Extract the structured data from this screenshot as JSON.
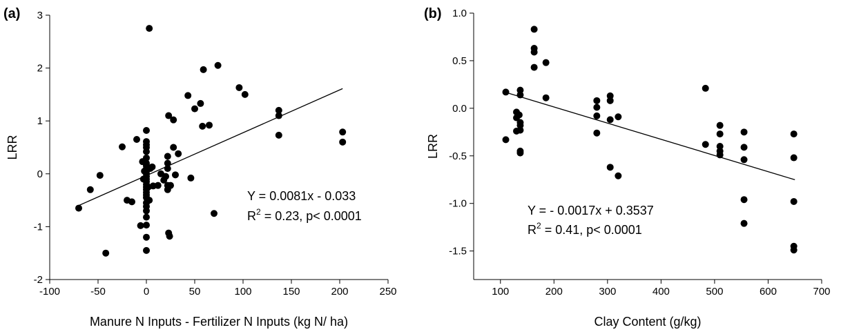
{
  "chart_data": [
    {
      "type": "scatter",
      "panel_label": "(a)",
      "xlabel": "Manure N Inputs - Fertilizer N Inputs (kg N/ ha)",
      "ylabel": "LRR",
      "xlim": [
        -100,
        250
      ],
      "ylim": [
        -2,
        3
      ],
      "xticks": [
        -100,
        -50,
        0,
        50,
        100,
        150,
        200,
        250
      ],
      "yticks": [
        -2,
        -1,
        0,
        1,
        2,
        3
      ],
      "x_tick_labels": [
        "-100",
        "-50",
        "0",
        "50",
        "100",
        "150",
        "200",
        "250"
      ],
      "y_tick_labels": [
        "-2",
        "-1",
        "0",
        "1",
        "2",
        "3"
      ],
      "fit": {
        "slope": 0.0081,
        "intercept": -0.033,
        "x_range": [
          -70,
          203
        ]
      },
      "annotation": {
        "line1": "Y = 0.0081x - 0.033",
        "line2_prefix": "R",
        "line2_sup": "2",
        "line2_suffix": " = 0.23, p< 0.0001"
      },
      "points": [
        [
          -70,
          -0.65
        ],
        [
          -58,
          -0.3
        ],
        [
          -48,
          -0.03
        ],
        [
          -42,
          -1.5
        ],
        [
          -25,
          0.51
        ],
        [
          -20,
          -0.5
        ],
        [
          -15,
          -0.53
        ],
        [
          -10,
          0.65
        ],
        [
          -6,
          -0.98
        ],
        [
          -4,
          0.23
        ],
        [
          -3,
          -0.1
        ],
        [
          -2,
          0.05
        ],
        [
          0,
          0.82
        ],
        [
          0,
          0.61
        ],
        [
          0,
          0.55
        ],
        [
          0,
          0.5
        ],
        [
          0,
          0.42
        ],
        [
          0,
          0.3
        ],
        [
          0,
          0.2
        ],
        [
          0,
          0.15
        ],
        [
          0,
          0.1
        ],
        [
          0,
          0.05
        ],
        [
          0,
          0.0
        ],
        [
          0,
          -0.05
        ],
        [
          0,
          -0.1
        ],
        [
          0,
          -0.15
        ],
        [
          0,
          -0.2
        ],
        [
          0,
          -0.25
        ],
        [
          0,
          -0.3
        ],
        [
          0,
          -0.35
        ],
        [
          0,
          -0.4
        ],
        [
          0,
          -0.45
        ],
        [
          0,
          -0.55
        ],
        [
          0,
          -0.62
        ],
        [
          0,
          -0.7
        ],
        [
          0,
          -0.82
        ],
        [
          0,
          -0.97
        ],
        [
          0,
          -1.2
        ],
        [
          0,
          -1.45
        ],
        [
          2,
          -0.25
        ],
        [
          3,
          2.75
        ],
        [
          3,
          -0.5
        ],
        [
          4,
          0.1
        ],
        [
          6,
          0.13
        ],
        [
          7,
          -0.23
        ],
        [
          12,
          -0.22
        ],
        [
          15,
          0.0
        ],
        [
          18,
          -0.12
        ],
        [
          20,
          -0.05
        ],
        [
          22,
          0.33
        ],
        [
          22,
          0.2
        ],
        [
          22,
          0.1
        ],
        [
          22,
          -0.22
        ],
        [
          22,
          -0.3
        ],
        [
          23,
          1.1
        ],
        [
          23,
          -1.12
        ],
        [
          24,
          -1.18
        ],
        [
          25,
          -0.22
        ],
        [
          28,
          1.02
        ],
        [
          28,
          0.5
        ],
        [
          30,
          -0.02
        ],
        [
          33,
          0.38
        ],
        [
          43,
          1.48
        ],
        [
          46,
          -0.08
        ],
        [
          50,
          1.23
        ],
        [
          56,
          1.33
        ],
        [
          58,
          0.9
        ],
        [
          59,
          1.97
        ],
        [
          65,
          0.92
        ],
        [
          70,
          -0.75
        ],
        [
          74,
          2.05
        ],
        [
          96,
          1.63
        ],
        [
          102,
          1.5
        ],
        [
          137,
          1.2
        ],
        [
          137,
          1.1
        ],
        [
          137,
          0.73
        ],
        [
          203,
          0.79
        ],
        [
          203,
          0.6
        ]
      ]
    },
    {
      "type": "scatter",
      "panel_label": "(b)",
      "xlabel": "Clay Content (g/kg)",
      "ylabel": "LRR",
      "xlim": [
        50,
        700
      ],
      "ylim": [
        -1.8,
        1.0
      ],
      "xticks": [
        100,
        200,
        300,
        400,
        500,
        600,
        700
      ],
      "yticks": [
        -1.5,
        -1.0,
        -0.5,
        0.0,
        0.5,
        1.0
      ],
      "x_tick_labels": [
        "100",
        "200",
        "300",
        "400",
        "500",
        "600",
        "700"
      ],
      "y_tick_labels": [
        "-1.5",
        "-1.0",
        "-0.5",
        "0.0",
        "0.5",
        "1.0"
      ],
      "fit": {
        "slope": -0.0017,
        "intercept": 0.3537,
        "x_range": [
          110,
          650
        ]
      },
      "annotation": {
        "line1": "Y = - 0.0017x + 0.3537",
        "line2_prefix": "R",
        "line2_sup": "2",
        "line2_suffix": " = 0.41, p< 0.0001"
      },
      "points": [
        [
          110,
          0.17
        ],
        [
          110,
          -0.33
        ],
        [
          130,
          -0.04
        ],
        [
          130,
          -0.1
        ],
        [
          130,
          -0.24
        ],
        [
          135,
          -0.07
        ],
        [
          137,
          0.19
        ],
        [
          137,
          0.14
        ],
        [
          137,
          -0.15
        ],
        [
          137,
          -0.18
        ],
        [
          137,
          -0.23
        ],
        [
          137,
          -0.45
        ],
        [
          137,
          -0.47
        ],
        [
          163,
          0.83
        ],
        [
          163,
          0.63
        ],
        [
          163,
          0.59
        ],
        [
          163,
          0.43
        ],
        [
          185,
          0.48
        ],
        [
          185,
          0.11
        ],
        [
          280,
          0.08
        ],
        [
          280,
          0.01
        ],
        [
          280,
          -0.08
        ],
        [
          280,
          -0.26
        ],
        [
          305,
          0.13
        ],
        [
          305,
          0.08
        ],
        [
          305,
          -0.12
        ],
        [
          305,
          -0.62
        ],
        [
          320,
          -0.09
        ],
        [
          320,
          -0.71
        ],
        [
          483,
          0.21
        ],
        [
          483,
          -0.38
        ],
        [
          510,
          -0.18
        ],
        [
          510,
          -0.27
        ],
        [
          510,
          -0.4
        ],
        [
          510,
          -0.45
        ],
        [
          510,
          -0.49
        ],
        [
          555,
          -0.25
        ],
        [
          555,
          -0.41
        ],
        [
          555,
          -0.54
        ],
        [
          555,
          -0.96
        ],
        [
          555,
          -1.21
        ],
        [
          648,
          -0.27
        ],
        [
          648,
          -0.52
        ],
        [
          648,
          -0.98
        ],
        [
          648,
          -1.45
        ],
        [
          648,
          -1.49
        ]
      ]
    }
  ]
}
